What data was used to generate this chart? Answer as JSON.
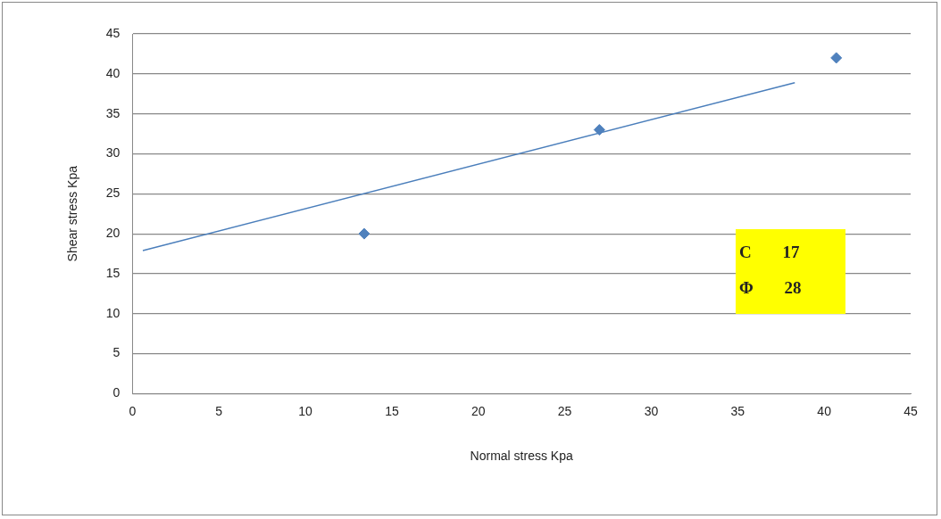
{
  "chart_data": {
    "type": "scatter",
    "xlabel": "Normal stress Kpa",
    "ylabel": "Shear stress Kpa",
    "xlim": [
      0,
      45
    ],
    "xticks": [
      0,
      5,
      10,
      15,
      20,
      25,
      30,
      35,
      40,
      45
    ],
    "ylim": [
      0,
      45
    ],
    "yticks": [
      0,
      5,
      10,
      15,
      20,
      25,
      30,
      35,
      40,
      45
    ],
    "grid": "y",
    "legend": false,
    "marker": "diamond",
    "series": [
      {
        "type": "scatter",
        "color": "#4f81bd",
        "x": [
          13.4,
          27.0,
          40.7
        ],
        "values": [
          20,
          33,
          42
        ]
      },
      {
        "type": "line",
        "color": "#4a7ebb",
        "x": [
          0.6,
          38.3
        ],
        "values": [
          17.9,
          38.9
        ],
        "marker": "none"
      }
    ],
    "annotations": [
      "C 17",
      "Φ 28"
    ]
  }
}
